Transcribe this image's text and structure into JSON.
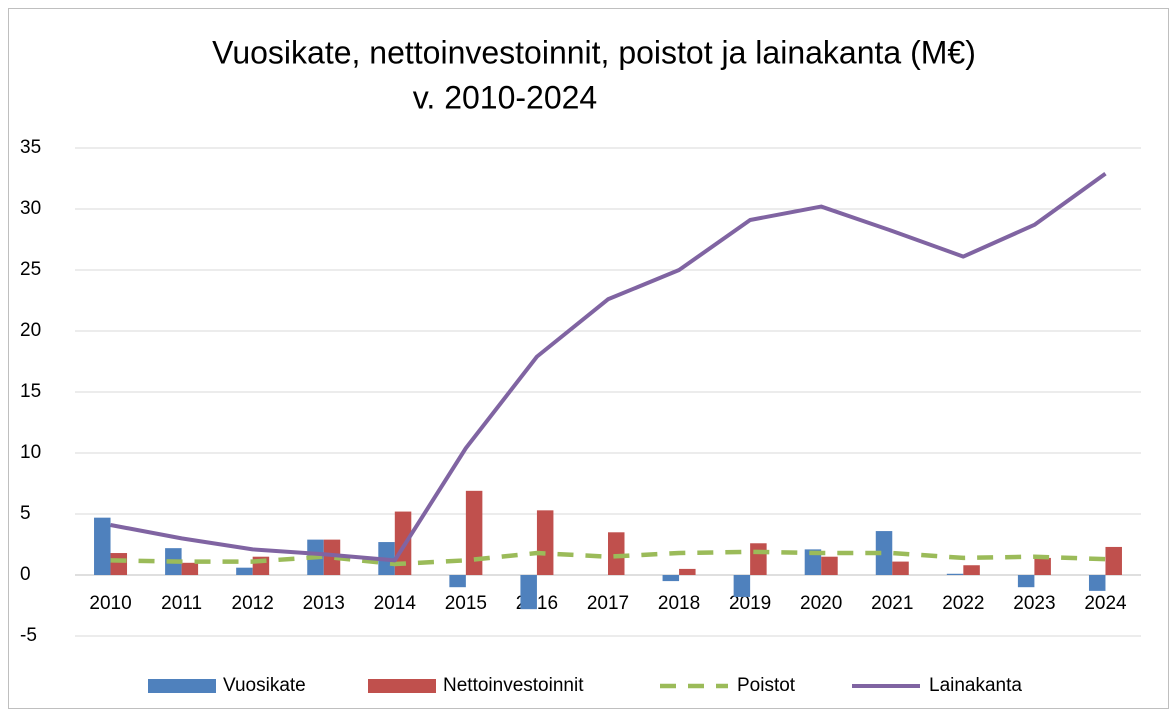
{
  "chart_data": {
    "type": "bar_line",
    "title": "Vuosikate, nettoinvestoinnit, poistot ja lainakanta (M€)",
    "subtitle": "v. 2010-2024",
    "categories": [
      "2010",
      "2011",
      "2012",
      "2013",
      "2014",
      "2015",
      "2016",
      "2017",
      "2018",
      "2019",
      "2020",
      "2021",
      "2022",
      "2023",
      "2024"
    ],
    "series": [
      {
        "name": "Vuosikate",
        "type": "bar",
        "color": "#4f81bd",
        "values": [
          4.7,
          2.2,
          0.6,
          2.9,
          2.7,
          -1.0,
          -2.8,
          0,
          -0.5,
          -1.8,
          2.1,
          3.6,
          0.1,
          -1.0,
          -1.3
        ]
      },
      {
        "name": "Nettoinvestoinnit",
        "type": "bar",
        "color": "#c0504d",
        "values": [
          1.8,
          1.0,
          1.5,
          2.9,
          5.2,
          6.9,
          5.3,
          3.5,
          0.5,
          2.6,
          1.5,
          1.1,
          0.8,
          1.4,
          2.3
        ]
      },
      {
        "name": "Poistot",
        "type": "dashed-line",
        "color": "#9bbb59",
        "values": [
          1.2,
          1.1,
          1.1,
          1.5,
          0.9,
          1.2,
          1.8,
          1.5,
          1.8,
          1.9,
          1.8,
          1.8,
          1.4,
          1.5,
          1.3
        ]
      },
      {
        "name": "Lainakanta",
        "type": "line",
        "color": "#8064a2",
        "values": [
          4.1,
          3.0,
          2.1,
          1.7,
          1.2,
          10.4,
          17.9,
          22.6,
          25.0,
          29.1,
          30.2,
          28.2,
          26.1,
          28.7,
          32.9
        ]
      }
    ],
    "ylim": [
      -5,
      35
    ],
    "yticks": [
      -5,
      0,
      5,
      10,
      15,
      20,
      25,
      30,
      35
    ],
    "grid": true,
    "legend": "bottom"
  }
}
